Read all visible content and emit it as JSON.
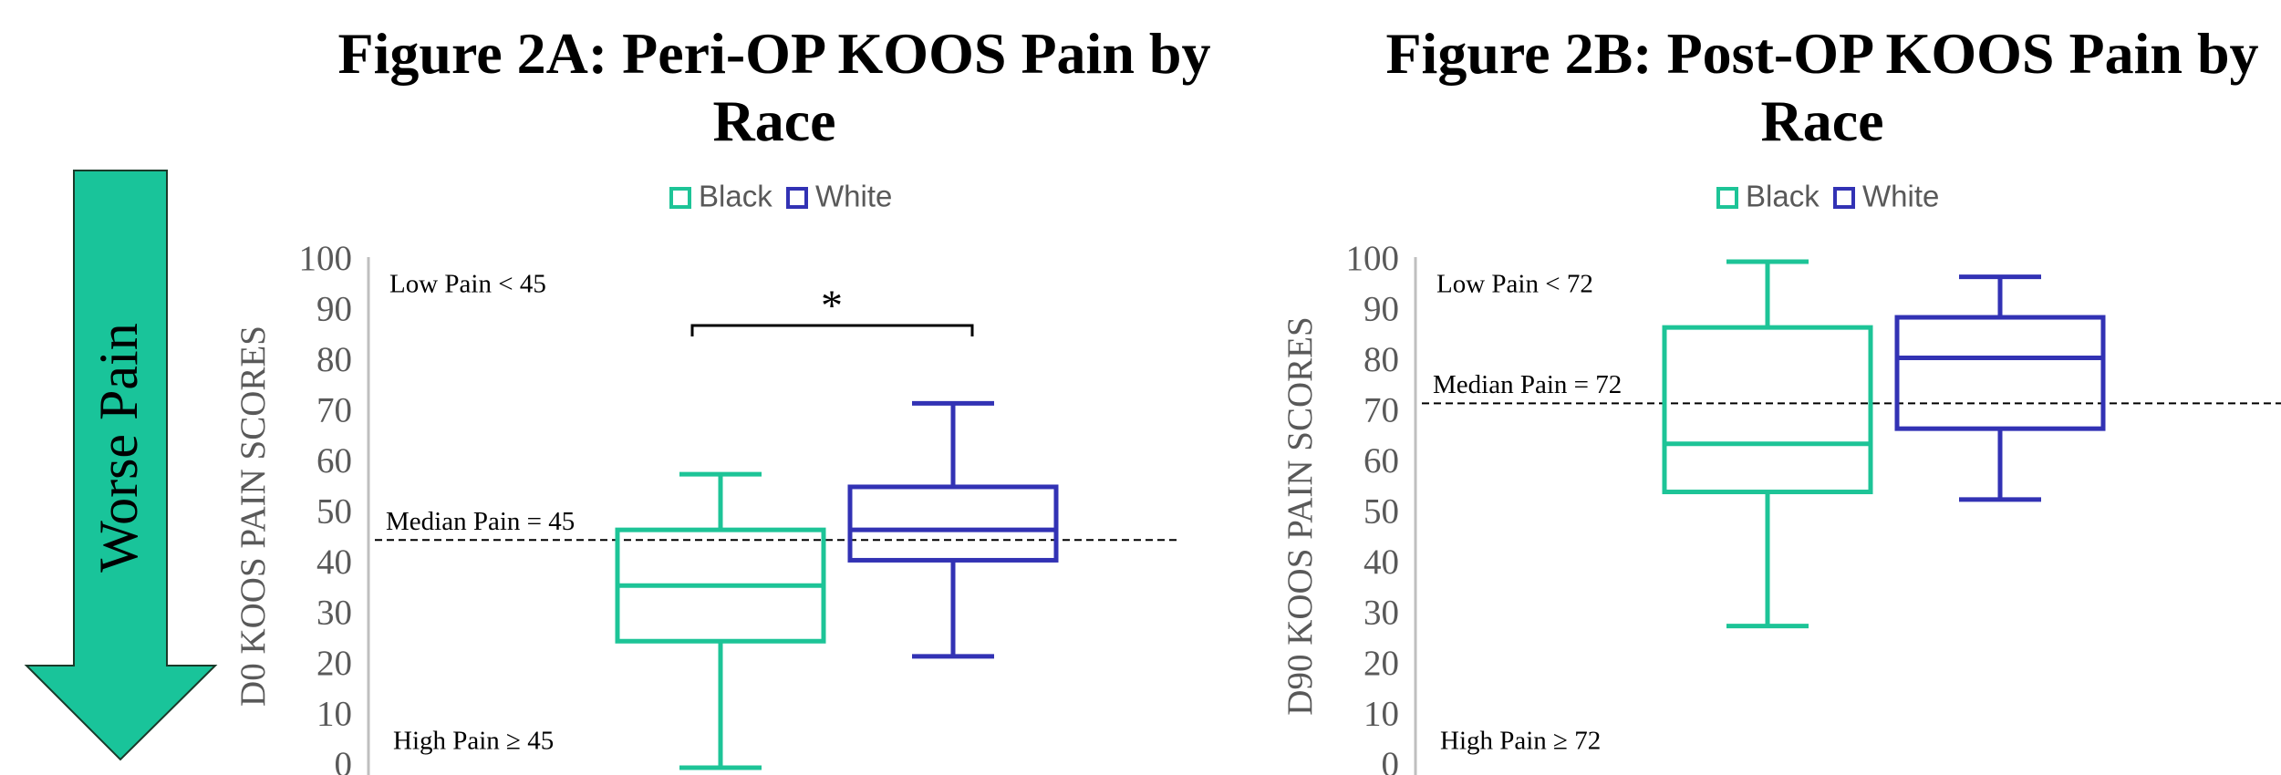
{
  "arrow_label": "Worse Pain",
  "chart_data": [
    {
      "type": "box",
      "title": "Figure 2A: Peri-OP KOOS Pain by Race",
      "y_label": "D0 KOOS PAIN SCORES",
      "ylim": [
        0,
        100
      ],
      "yticks": [
        0,
        10,
        20,
        30,
        40,
        50,
        60,
        70,
        80,
        90,
        100
      ],
      "ref_line": 45,
      "low_label": "Low Pain < 45",
      "median_label": "Median Pain = 45",
      "high_label": "High Pain ≥ 45",
      "significance": "*",
      "series": [
        {
          "name": "Black",
          "color": "#1dc497",
          "min": 0,
          "q1": 25,
          "median": 36,
          "q3": 47,
          "max": 58
        },
        {
          "name": "White",
          "color": "#3232b4",
          "min": 22,
          "q1": 41,
          "median": 47,
          "q3": 55.5,
          "max": 72
        }
      ]
    },
    {
      "type": "box",
      "title": "Figure 2B: Post-OP KOOS Pain by Race",
      "y_label": "D90 KOOS PAIN SCORES",
      "ylim": [
        0,
        100
      ],
      "yticks": [
        0,
        10,
        20,
        30,
        40,
        50,
        60,
        70,
        80,
        90,
        100
      ],
      "ref_line": 72,
      "low_label": "Low Pain < 72",
      "median_label": "Median Pain = 72",
      "high_label": "High Pain ≥ 72",
      "series": [
        {
          "name": "Black",
          "color": "#1dc497",
          "min": 28,
          "q1": 54.5,
          "median": 64,
          "q3": 87,
          "max": 100
        },
        {
          "name": "White",
          "color": "#3232b4",
          "min": 53,
          "q1": 67,
          "median": 81,
          "q3": 89,
          "max": 97
        }
      ]
    }
  ]
}
